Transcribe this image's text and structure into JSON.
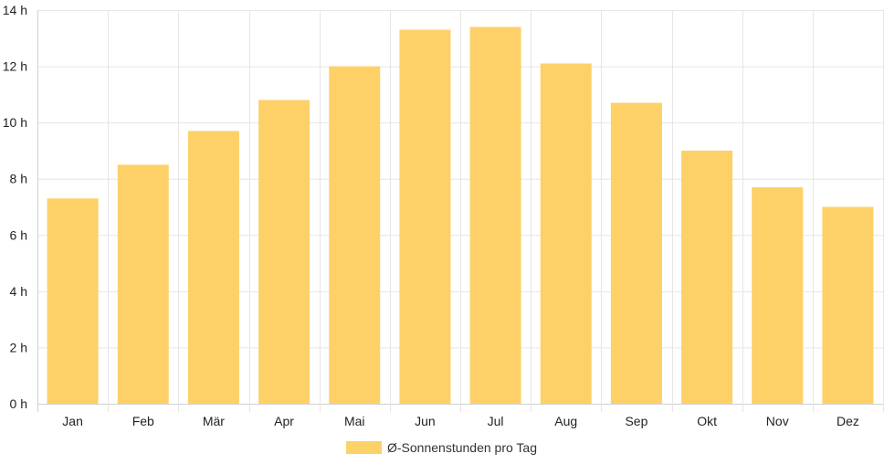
{
  "chart_data": {
    "type": "bar",
    "categories": [
      "Jan",
      "Feb",
      "Mär",
      "Apr",
      "Mai",
      "Jun",
      "Jul",
      "Aug",
      "Sep",
      "Okt",
      "Nov",
      "Dez"
    ],
    "series": [
      {
        "name": "Ø-Sonnenstunden pro Tag",
        "values": [
          7.3,
          8.5,
          9.7,
          10.8,
          12.0,
          13.3,
          13.4,
          12.1,
          10.7,
          9.0,
          7.7,
          7.0
        ],
        "color": "#fdd168"
      }
    ],
    "y_ticks": [
      "0 h",
      "2 h",
      "4 h",
      "6 h",
      "8 h",
      "10 h",
      "12 h",
      "14 h"
    ],
    "ylim": [
      0,
      14
    ],
    "grid": true,
    "legend_position": "bottom"
  }
}
